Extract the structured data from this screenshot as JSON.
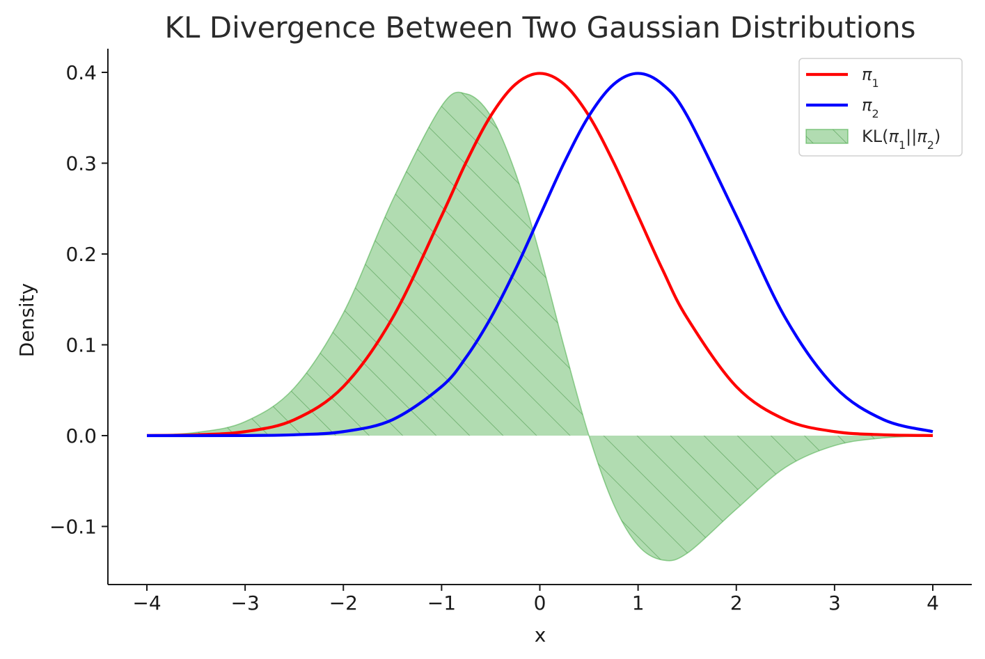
{
  "chart_data": {
    "type": "area",
    "title": "KL Divergence Between Two Gaussian Distributions",
    "xlabel": "x",
    "ylabel": "Density",
    "xlim": [
      -4,
      4
    ],
    "ylim": [
      -0.16,
      0.41
    ],
    "x_ticks": [
      "−4",
      "−3",
      "−2",
      "−1",
      "0",
      "1",
      "2",
      "3",
      "4"
    ],
    "x_tick_values": [
      -4,
      -3,
      -2,
      -1,
      0,
      1,
      2,
      3,
      4
    ],
    "y_ticks": [
      "−0.1",
      "0.0",
      "0.1",
      "0.2",
      "0.3",
      "0.4"
    ],
    "y_tick_values": [
      -0.1,
      0.0,
      0.1,
      0.2,
      0.3,
      0.4
    ],
    "grid": false,
    "legend_position": "top-right",
    "x": [
      -4.0,
      -3.5,
      -3.0,
      -2.5,
      -2.0,
      -1.5,
      -1.0,
      -0.75,
      -0.5,
      -0.25,
      0.0,
      0.25,
      0.5,
      0.75,
      1.0,
      1.25,
      1.5,
      2.0,
      2.5,
      3.0,
      3.5,
      4.0
    ],
    "series": [
      {
        "name": "π₁",
        "legend_base": "π",
        "legend_sub": "1",
        "type": "line",
        "color": "#ff0000",
        "values": [
          0.0001,
          0.0009,
          0.0044,
          0.0175,
          0.054,
          0.1295,
          0.242,
          0.3011,
          0.3521,
          0.3867,
          0.3989,
          0.3867,
          0.3521,
          0.3011,
          0.242,
          0.1826,
          0.1295,
          0.054,
          0.0175,
          0.0044,
          0.0009,
          0.0001
        ]
      },
      {
        "name": "π₂",
        "legend_base": "π",
        "legend_sub": "2",
        "type": "line",
        "color": "#0000ff",
        "values": [
          0.0,
          0.0,
          0.0001,
          0.0009,
          0.0044,
          0.0175,
          0.054,
          0.0863,
          0.1295,
          0.1826,
          0.242,
          0.3011,
          0.3521,
          0.3867,
          0.3989,
          0.3867,
          0.3521,
          0.242,
          0.1295,
          0.054,
          0.0175,
          0.0044
        ]
      },
      {
        "name": "KL(π₁||π₂)",
        "legend_prefix": "KL(",
        "legend_a": "π",
        "legend_a_sub": "1",
        "legend_mid": "||",
        "legend_b": "π",
        "legend_b_sub": "2",
        "legend_suffix": ")",
        "type": "area",
        "color": "#2ca02c",
        "values": [
          0.0004,
          0.0035,
          0.0154,
          0.0526,
          0.135,
          0.259,
          0.363,
          0.3764,
          0.3521,
          0.29,
          0.1995,
          0.0967,
          0.0,
          -0.0753,
          -0.121,
          -0.137,
          -0.1295,
          -0.081,
          -0.035,
          -0.011,
          -0.0025,
          -0.0004
        ]
      }
    ]
  }
}
